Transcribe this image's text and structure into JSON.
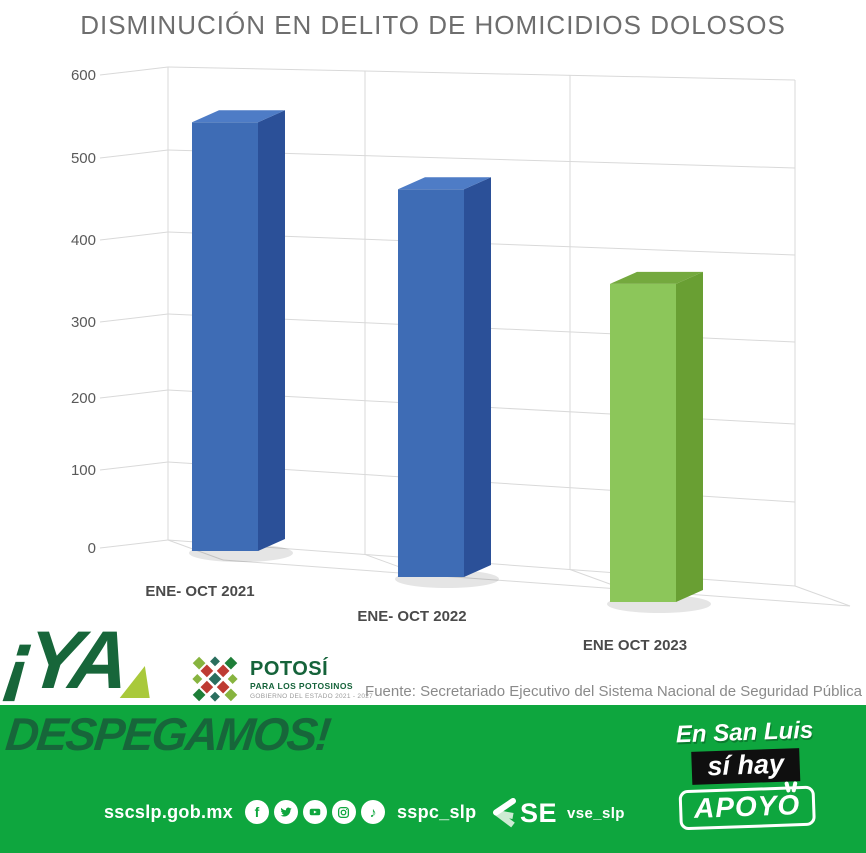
{
  "title": "DISMINUCIÓN EN DELITO DE HOMICIDIOS DOLOSOS",
  "chart_data": {
    "type": "bar",
    "style": "3d-perspective",
    "title": "DISMINUCIÓN EN DELITO DE HOMICIDIOS DOLOSOS",
    "categories": [
      "ENE- OCT 2021",
      "ENE- OCT 2022",
      "ENE OCT 2023"
    ],
    "values": [
      540,
      455,
      335
    ],
    "yticks": [
      0,
      100,
      200,
      300,
      400,
      500,
      600
    ],
    "ylim": [
      0,
      600
    ],
    "grid": true,
    "legend": "none",
    "xlabel": "",
    "ylabel": "",
    "bar_faces": [
      {
        "front": "#3E6CB5",
        "top": "#4E7CC6",
        "side": "#2B5098"
      },
      {
        "front": "#3E6CB5",
        "top": "#4E7CC6",
        "side": "#2B5098"
      },
      {
        "front": "#8CC65A",
        "top": "#74A93E",
        "side": "#699F33"
      }
    ]
  },
  "source": "Fuente: Secretariado Ejecutivo del Sistema Nacional de Seguridad Pública",
  "campaign": {
    "ya": "¡YA",
    "despegamos": "DESPEGAMOS!"
  },
  "logo": {
    "name": "POTOSÍ",
    "tagline": "PARA LOS POTOSINOS",
    "subline": "GOBIERNO DEL ESTADO 2021 - 2027"
  },
  "footer": {
    "website": "sscslp.gob.mx",
    "handle": "sspc_slp",
    "se_label": "SE",
    "se_handle": "vse_slp",
    "slogan": {
      "line1": "En San Luis",
      "line2": "sí hay",
      "line3": "APOYO"
    },
    "social_icons": [
      "facebook-icon",
      "twitter-icon",
      "youtube-icon",
      "instagram-icon",
      "tiktok-icon"
    ]
  },
  "colors": {
    "band_green": "#0EA63E",
    "dark_green": "#17663A",
    "lime": "#A9C93B",
    "bar_blue": "#3E6CB5",
    "bar_green": "#8CC65A",
    "title_gray": "#6E6E6E",
    "source_gray": "#8A8A8A",
    "grid_gray": "#D9D9D9",
    "axis_text": "#595959"
  }
}
